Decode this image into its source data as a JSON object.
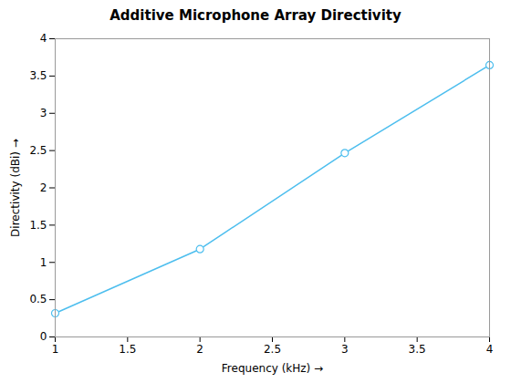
{
  "chart_data": {
    "type": "line",
    "title": "Additive Microphone Array Directivity",
    "xlabel": "Frequency (kHz)",
    "ylabel": "Directivity (dBi)",
    "x": [
      1.0,
      2.0,
      3.0,
      4.0
    ],
    "values": [
      0.3183,
      1.1781,
      2.4674,
      3.6464
    ],
    "color": "#4DBEEE",
    "marker": "circle",
    "xlim": [
      1.0,
      4.0
    ],
    "ylim": [
      0.0,
      4.0
    ],
    "xticks": [
      1.0,
      1.5,
      2.0,
      2.5,
      3.0,
      3.5,
      4.0
    ],
    "yticks": [
      0.0,
      0.5,
      1.0,
      1.5,
      2.0,
      2.5,
      3.0,
      3.5,
      4.0
    ],
    "grid": false
  }
}
